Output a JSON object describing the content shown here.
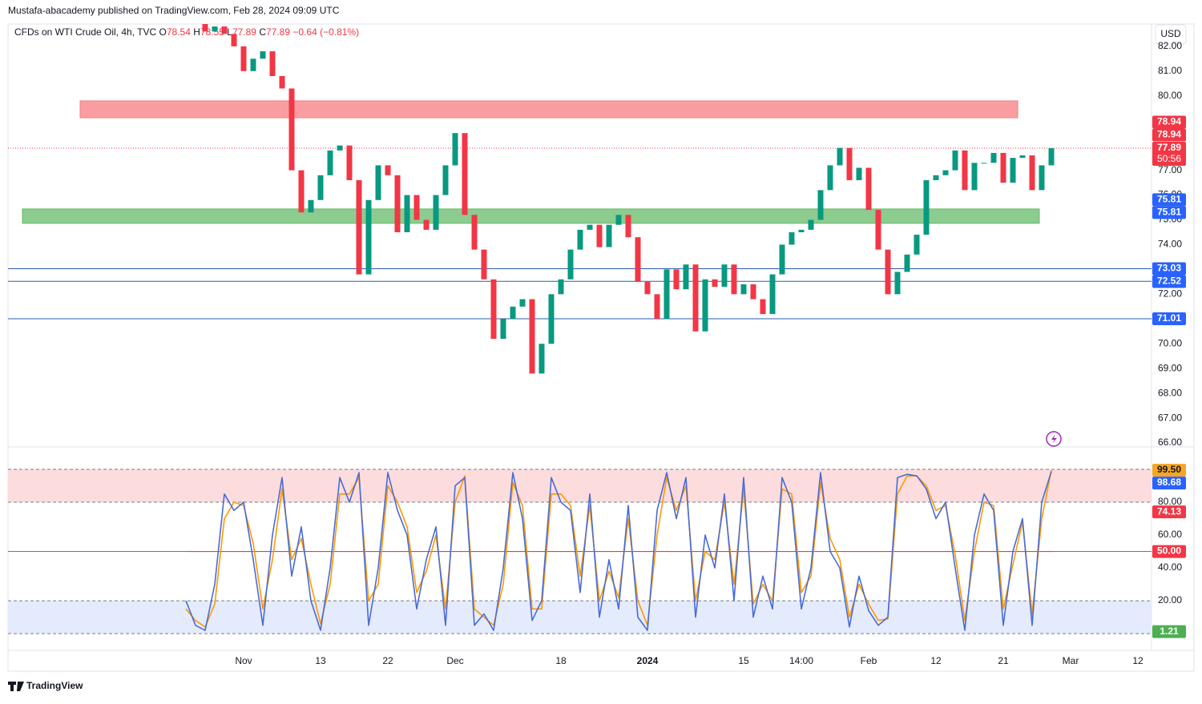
{
  "header": {
    "publisher": "Mustafa-abacademy published on TradingView.com, Feb 28, 2024 09:09 UTC",
    "symbol": "CFDs on WTI Crude Oil, 4h, TVC",
    "ohlc": [
      {
        "key": "O",
        "value": 78.54
      },
      {
        "key": "H",
        "value": 78.55
      },
      {
        "key": "L",
        "value": 77.89
      },
      {
        "key": "C",
        "value": 77.89
      }
    ],
    "change": "−0.64 (−0.81%)"
  },
  "currency": "USD",
  "footer": "TradingView",
  "chart_data": [
    {
      "type": "candlestick",
      "categories": [
        null,
        null,
        null,
        null,
        null,
        null,
        "Nov",
        null,
        null,
        null,
        null,
        null,
        null,
        null,
        "13",
        null,
        null,
        null,
        null,
        null,
        null,
        "22",
        null,
        null,
        null,
        null,
        null,
        null,
        "Dec",
        null,
        null,
        null,
        null,
        null,
        null,
        null,
        null,
        null,
        null,
        "18",
        null,
        null,
        null,
        null,
        null,
        null,
        null,
        null,
        "2024",
        null,
        null,
        null,
        null,
        null,
        null,
        null,
        null,
        null,
        "15",
        null,
        null,
        null,
        null,
        null,
        "14:00",
        null,
        null,
        null,
        null,
        null,
        null,
        "Feb",
        null,
        null,
        null,
        null,
        null,
        null,
        "12",
        null,
        null,
        null,
        null,
        null,
        null,
        "21",
        null,
        null,
        null,
        null,
        null,
        null,
        "Mar",
        null,
        null,
        null,
        null,
        null,
        null,
        "12"
      ],
      "values": [
        83.5,
        83.0,
        82.6,
        82.8,
        82.5,
        82.0,
        81.0,
        81.5,
        81.8,
        80.8,
        80.3,
        77.0,
        75.3,
        75.8,
        76.8,
        77.8,
        78.0,
        76.6,
        72.8,
        75.8,
        77.2,
        76.8,
        74.5,
        76.0,
        75.0,
        74.6,
        76.0,
        77.2,
        78.5,
        75.2,
        73.8,
        72.6,
        70.2,
        71.0,
        71.5,
        71.8,
        68.8,
        70.0,
        72.0,
        72.6,
        73.8,
        74.6,
        74.8,
        73.9,
        74.8,
        75.2,
        74.3,
        72.5,
        72.0,
        71.0,
        73.0,
        72.2,
        73.2,
        70.5,
        72.6,
        72.3,
        73.2,
        72.0,
        72.4,
        71.8,
        71.2,
        72.8,
        74.0,
        74.5,
        74.6,
        75.0,
        76.2,
        77.2,
        77.9,
        76.6,
        77.1,
        75.4,
        73.8,
        72.0,
        72.9,
        73.6,
        74.4,
        76.6,
        76.8,
        77.0,
        77.8,
        76.2,
        77.3,
        77.3,
        77.7,
        76.5,
        77.5,
        77.6,
        76.2,
        77.2,
        77.89,
        null,
        null,
        null,
        null,
        null,
        null,
        null,
        null,
        null
      ],
      "color_up": "#089981",
      "color_down": "#f23645",
      "ylim": [
        65.84,
        82.9
      ],
      "yticks": [
        {
          "value": 82,
          "label": "82.00"
        },
        {
          "value": 81,
          "label": "81.00"
        },
        {
          "value": 80,
          "label": "80.00"
        },
        {
          "value": 77,
          "label": "77.00"
        },
        {
          "value": 76,
          "label": "76.00"
        },
        {
          "value": 75,
          "label": "75.00"
        },
        {
          "value": 74,
          "label": "74.00"
        },
        {
          "value": 72,
          "label": "72.00"
        },
        {
          "value": 70,
          "label": "70.00"
        },
        {
          "value": 69,
          "label": "69.00"
        },
        {
          "value": 68,
          "label": "68.00"
        },
        {
          "value": 67,
          "label": "67.00"
        },
        {
          "value": 66,
          "label": "66.00"
        }
      ],
      "grid": false,
      "zones": [
        {
          "from": 79.12,
          "to": 79.8,
          "color": "#f77c80"
        },
        {
          "from": 74.86,
          "to": 75.44,
          "color": "#66bb6a"
        }
      ],
      "hlines": [
        73.03,
        72.52,
        71.01
      ],
      "hline_color": "#2a5db0",
      "last_price": 77.89,
      "price_labels": [
        {
          "value": 78.94,
          "label": "78.94",
          "color": "#f23645"
        },
        {
          "value": 78.94,
          "label": "78.94",
          "color": "#f23645"
        },
        {
          "value": 77.89,
          "label": "77.89",
          "sublabel": "50:56",
          "color": "#f23645"
        },
        {
          "value": 75.81,
          "label": "75.81",
          "color": "#2962ff"
        },
        {
          "value": 75.81,
          "label": "75.81",
          "color": "#2962ff"
        },
        {
          "value": 73.03,
          "label": "73.03",
          "color": "#2962ff"
        },
        {
          "value": 72.52,
          "label": "72.52",
          "color": "#2962ff"
        },
        {
          "value": 71.01,
          "label": "71.01",
          "color": "#2962ff"
        }
      ]
    },
    {
      "type": "line",
      "series": [
        {
          "color": "#4a6bd6",
          "values": [
            20,
            5,
            2,
            30,
            85,
            75,
            80,
            45,
            5,
            60,
            95,
            35,
            65,
            20,
            2,
            40,
            95,
            80,
            98,
            5,
            40,
            98,
            75,
            60,
            15,
            45,
            65,
            5,
            90,
            95,
            5,
            12,
            2,
            40,
            98,
            70,
            8,
            20,
            95,
            80,
            75,
            25,
            85,
            10,
            45,
            15,
            78,
            10,
            2,
            75,
            98,
            70,
            95,
            10,
            60,
            40,
            85,
            20,
            95,
            10,
            35,
            15,
            95,
            80,
            15,
            40,
            98,
            50,
            40,
            4,
            35,
            14,
            5,
            10,
            95,
            97,
            96,
            88,
            70,
            80,
            40,
            2,
            60,
            85,
            75,
            5,
            50,
            70,
            5,
            80,
            98.68,
            null,
            null,
            null,
            null,
            null,
            null,
            null,
            null,
            null
          ]
        },
        {
          "color": "#ff9800",
          "values": [
            15,
            8,
            4,
            18,
            70,
            80,
            78,
            55,
            15,
            45,
            88,
            45,
            58,
            30,
            6,
            30,
            85,
            85,
            95,
            20,
            30,
            90,
            80,
            65,
            25,
            38,
            60,
            15,
            80,
            96,
            15,
            10,
            5,
            30,
            92,
            78,
            15,
            15,
            85,
            85,
            78,
            35,
            78,
            20,
            38,
            22,
            70,
            20,
            5,
            60,
            95,
            75,
            90,
            20,
            50,
            45,
            80,
            30,
            88,
            18,
            30,
            20,
            88,
            85,
            25,
            35,
            92,
            58,
            45,
            10,
            30,
            18,
            8,
            9,
            85,
            96,
            96,
            90,
            75,
            78,
            48,
            8,
            50,
            80,
            78,
            15,
            42,
            68,
            12,
            70,
            99.5,
            null,
            null,
            null,
            null,
            null,
            null,
            null,
            null,
            null
          ]
        }
      ],
      "ylim": [
        -10.2,
        112.7
      ],
      "yticks": [
        {
          "value": 80,
          "label": "80.00"
        },
        {
          "value": 60,
          "label": "60.00"
        },
        {
          "value": 40,
          "label": "40.00"
        },
        {
          "value": 20,
          "label": "20.00"
        }
      ],
      "bands": [
        {
          "from": 80,
          "to": 100,
          "color": "#fcdcdd"
        },
        {
          "from": 0,
          "to": 20,
          "color": "#e4ebfc"
        }
      ],
      "midline": 50,
      "price_labels": [
        {
          "value": 99.5,
          "label": "99.50",
          "color": "#f5a623"
        },
        {
          "value": 98.68,
          "label": "98.68",
          "color": "#2962ff"
        },
        {
          "value": 74.13,
          "label": "74.13",
          "color": "#f23645"
        },
        {
          "value": 50,
          "label": "50.00",
          "color": "#f23645"
        },
        {
          "value": 1.21,
          "label": "1.21",
          "color": "#4caf50"
        }
      ]
    }
  ]
}
